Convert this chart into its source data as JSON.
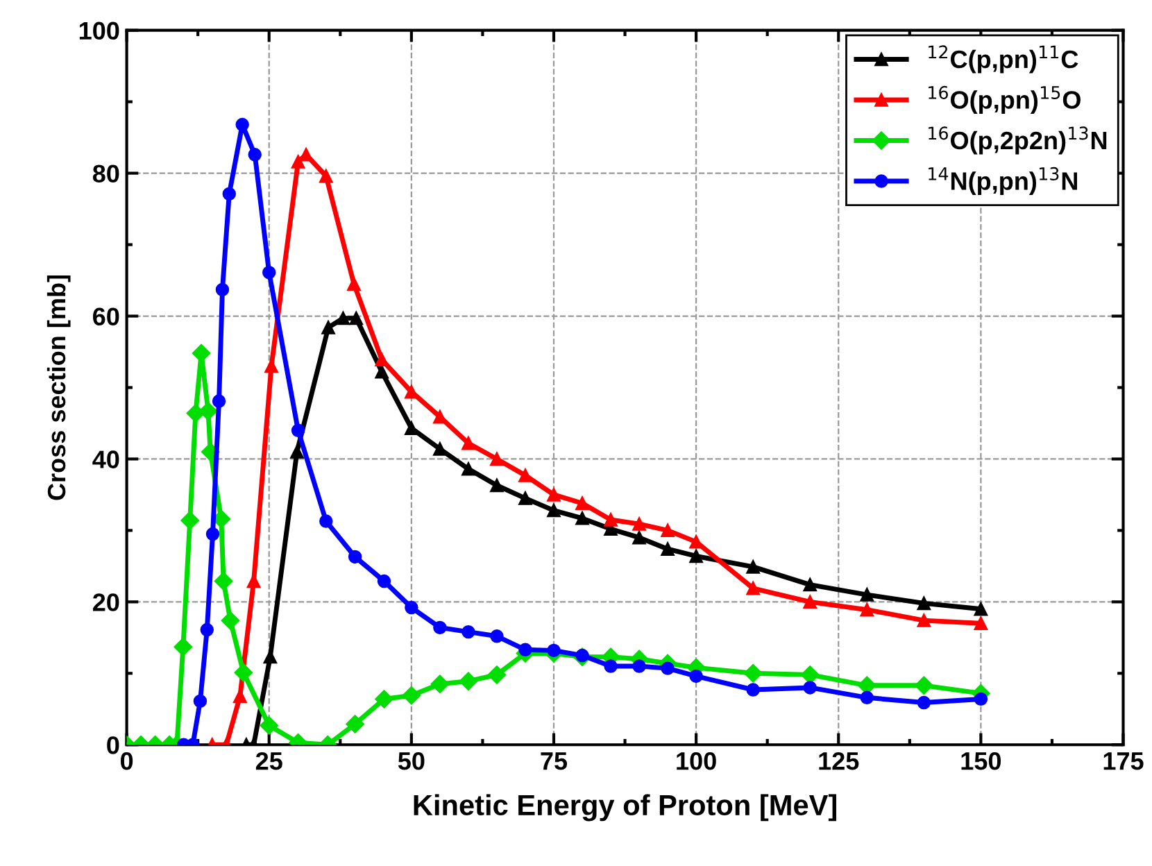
{
  "chart_data": {
    "type": "line",
    "xlabel": "Kinetic Energy of Proton [MeV]",
    "ylabel": "Cross section [mb]",
    "xlim": [
      0,
      175
    ],
    "xticks": [
      0,
      25,
      50,
      75,
      100,
      125,
      150,
      175
    ],
    "ylim": [
      0,
      100
    ],
    "yticks": [
      0,
      20,
      40,
      60,
      80,
      100
    ],
    "grid": true,
    "legend": "top right",
    "line_style": "solid",
    "series": [
      {
        "name": "$^{12}$C(p,pn)$^{11}$C",
        "color": "#000000",
        "marker": "triangle",
        "x": [
          21,
          22.3,
          25.2,
          29.9,
          35.4,
          38,
          40.3,
          44.8,
          50,
          55,
          60,
          65,
          70,
          75,
          80,
          85,
          90,
          95,
          100,
          110,
          120,
          130,
          140,
          150
        ],
        "values": [
          0,
          0,
          12.3,
          41.0,
          58.4,
          59.7,
          59.7,
          52.2,
          44.3,
          41.4,
          38.6,
          36.3,
          34.5,
          32.8,
          31.7,
          30.2,
          29.0,
          27.4,
          26.4,
          24.9,
          22.4,
          21.0,
          19.8,
          19.0
        ]
      },
      {
        "name": "$^{16}$O(p,pn)$^{15}$O",
        "color": "#ff0000",
        "marker": "triangle",
        "x": [
          15,
          17.5,
          19.9,
          22.3,
          25.4,
          30.1,
          31.5,
          35.0,
          39.9,
          44.8,
          50,
          55,
          60,
          65,
          70,
          75,
          80,
          85,
          90,
          95,
          100,
          110,
          120,
          130,
          140,
          150
        ],
        "values": [
          0,
          0,
          6.8,
          22.9,
          53.0,
          81.6,
          82.6,
          79.6,
          64.5,
          53.9,
          49.4,
          45.9,
          42.2,
          40.0,
          37.7,
          35.0,
          33.8,
          31.5,
          30.9,
          30.0,
          28.4,
          21.9,
          20.0,
          18.9,
          17.4,
          17.0
        ]
      },
      {
        "name": "$^{16}$O(p,2p2n)$^{13}$N",
        "color": "#00dd00",
        "marker": "diamond",
        "x": [
          0,
          2.5,
          5,
          7.5,
          8.8,
          9.9,
          11.1,
          12.1,
          13.1,
          14.3,
          14.7,
          16.6,
          17.0,
          18.2,
          20.5,
          25.0,
          30.1,
          35.3,
          40.1,
          45.2,
          50,
          55,
          60,
          65,
          70,
          75,
          80,
          85,
          90,
          95,
          100,
          110,
          120,
          130,
          140,
          150
        ],
        "values": [
          0,
          0,
          0,
          0,
          0,
          13.7,
          31.4,
          46.4,
          54.8,
          46.7,
          41.0,
          31.6,
          22.9,
          17.4,
          10.1,
          2.7,
          0.3,
          0,
          2.9,
          6.4,
          6.9,
          8.5,
          8.9,
          9.8,
          12.8,
          12.8,
          12.3,
          12.3,
          12.0,
          11.4,
          10.8,
          10.0,
          9.8,
          8.3,
          8.3,
          7.2
        ]
      },
      {
        "name": "$^{14}$N(p,pn)$^{13}$N",
        "color": "#0000ff",
        "marker": "circle",
        "x": [
          10,
          11.6,
          12.9,
          14.1,
          15.1,
          16.2,
          16.8,
          18.0,
          20.3,
          22.5,
          25.0,
          30.1,
          35.0,
          40.1,
          45.2,
          50,
          55,
          60,
          65,
          70,
          75,
          80,
          85,
          90,
          95,
          100,
          110,
          120,
          130,
          140,
          150
        ],
        "values": [
          0,
          0,
          6.1,
          16.1,
          29.5,
          48.1,
          63.7,
          77.1,
          86.8,
          82.6,
          66.1,
          44.0,
          31.3,
          26.3,
          22.9,
          19.2,
          16.4,
          15.8,
          15.2,
          13.3,
          13.2,
          12.5,
          11.0,
          11.0,
          10.7,
          9.6,
          7.7,
          8.0,
          6.6,
          5.9,
          6.4
        ]
      }
    ]
  }
}
